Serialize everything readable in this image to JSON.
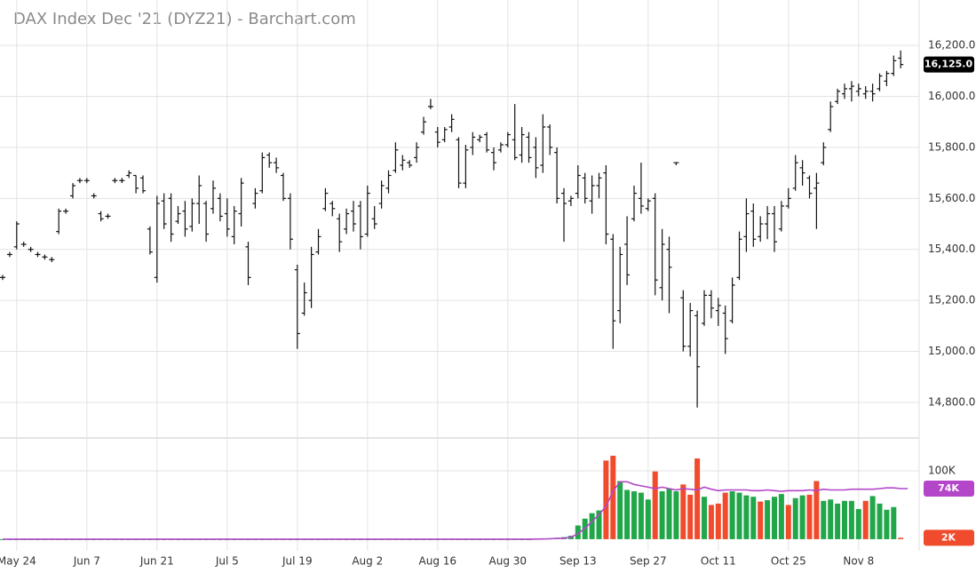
{
  "chart_data": {
    "type": "ohlc",
    "title": "DAX Index Dec '21 (DYZ21) - Barchart.com",
    "color": "#111111",
    "grid": true,
    "categories": [
      null,
      null,
      "May 24",
      null,
      null,
      null,
      null,
      null,
      null,
      null,
      null,
      null,
      "Jun 7",
      null,
      null,
      null,
      null,
      null,
      null,
      null,
      null,
      null,
      "Jun 21",
      null,
      null,
      null,
      null,
      null,
      null,
      null,
      null,
      null,
      "Jul 5",
      null,
      null,
      null,
      null,
      null,
      null,
      null,
      null,
      null,
      "Jul 19",
      null,
      null,
      null,
      null,
      null,
      null,
      null,
      null,
      null,
      "Aug 2",
      null,
      null,
      null,
      null,
      null,
      null,
      null,
      null,
      null,
      "Aug 16",
      null,
      null,
      null,
      null,
      null,
      null,
      null,
      null,
      null,
      "Aug 30",
      null,
      null,
      null,
      null,
      null,
      null,
      null,
      null,
      null,
      "Sep 13",
      null,
      null,
      null,
      null,
      null,
      null,
      null,
      null,
      null,
      "Sep 27",
      null,
      null,
      null,
      null,
      null,
      null,
      null,
      null,
      null,
      "Oct 11",
      null,
      null,
      null,
      null,
      null,
      null,
      null,
      null,
      null,
      "Oct 25",
      null,
      null,
      null,
      null,
      null,
      null,
      null,
      null,
      null,
      "Nov 8",
      null,
      null,
      null,
      null,
      null,
      null
    ],
    "open": [
      15290,
      15380,
      15410,
      15420,
      15400,
      15380,
      15370,
      15360,
      15470,
      15550,
      15610,
      15670,
      15670,
      15610,
      15540,
      15530,
      15670,
      15670,
      15690,
      15690,
      15680,
      15480,
      15290,
      15590,
      15600,
      15510,
      15550,
      15490,
      15580,
      15580,
      15560,
      15600,
      15540,
      15450,
      15540,
      15410,
      15580,
      15630,
      15770,
      15740,
      15690,
      15600,
      15320,
      15150,
      15200,
      15390,
      15560,
      15580,
      15520,
      15480,
      15550,
      15570,
      15460,
      15520,
      15580,
      15640,
      15710,
      15730,
      15740,
      15760,
      15860,
      15960,
      15860,
      15830,
      15880,
      15830,
      15660,
      15800,
      15830,
      15850,
      15780,
      15790,
      15810,
      15830,
      15770,
      15840,
      15800,
      15730,
      15880,
      15780,
      15620,
      15590,
      15620,
      15680,
      15590,
      15650,
      15700,
      15440,
      15160,
      15420,
      15520,
      15600,
      15560,
      15600,
      15250,
      15400,
      15740,
      15210,
      15020,
      15140,
      15110,
      15220,
      15160,
      15150,
      15120,
      15290,
      15450,
      15550,
      15450,
      15500,
      15540,
      15480,
      15570,
      15640,
      15720,
      15680,
      15640,
      15740,
      15870,
      15980,
      16010,
      16030,
      16020,
      16010,
      16020,
      16030,
      16060,
      16090,
      16150
    ],
    "high": [
      15300,
      15390,
      15510,
      15430,
      15410,
      15390,
      15380,
      15370,
      15560,
      15560,
      15660,
      15680,
      15680,
      15620,
      15550,
      15540,
      15680,
      15680,
      15710,
      15690,
      15690,
      15490,
      15610,
      15620,
      15620,
      15570,
      15590,
      15600,
      15690,
      15590,
      15670,
      15620,
      15600,
      15570,
      15680,
      15430,
      15640,
      15780,
      15780,
      15760,
      15700,
      15620,
      15340,
      15270,
      15410,
      15480,
      15640,
      15590,
      15540,
      15560,
      15590,
      15590,
      15650,
      15570,
      15670,
      15710,
      15820,
      15770,
      15750,
      15820,
      15920,
      15990,
      15880,
      15880,
      15930,
      15840,
      15810,
      15860,
      15850,
      15860,
      15800,
      15820,
      15860,
      15970,
      15880,
      15860,
      15840,
      15930,
      15890,
      15800,
      15640,
      15610,
      15730,
      15700,
      15690,
      15700,
      15730,
      15460,
      15410,
      15530,
      15650,
      15740,
      15600,
      15620,
      15480,
      15450,
      15740,
      15240,
      15190,
      15160,
      15240,
      15240,
      15210,
      15180,
      15290,
      15470,
      15600,
      15580,
      15530,
      15570,
      15570,
      15590,
      15640,
      15770,
      15750,
      15690,
      15700,
      15820,
      15980,
      16030,
      16050,
      16060,
      16050,
      16040,
      16050,
      16090,
      16100,
      16160,
      16180
    ],
    "low": [
      15280,
      15370,
      15400,
      15410,
      15390,
      15370,
      15360,
      15350,
      15460,
      15540,
      15600,
      15660,
      15660,
      15600,
      15510,
      15520,
      15660,
      15660,
      15680,
      15620,
      15620,
      15380,
      15270,
      15480,
      15430,
      15500,
      15450,
      15470,
      15500,
      15430,
      15540,
      15510,
      15450,
      15420,
      15490,
      15260,
      15560,
      15620,
      15720,
      15700,
      15590,
      15400,
      15010,
      15140,
      15170,
      15380,
      15550,
      15530,
      15390,
      15460,
      15470,
      15400,
      15450,
      15480,
      15560,
      15620,
      15700,
      15710,
      15720,
      15740,
      15850,
      15950,
      15800,
      15820,
      15860,
      15640,
      15640,
      15770,
      15820,
      15780,
      15710,
      15780,
      15800,
      15750,
      15740,
      15740,
      15680,
      15700,
      15770,
      15580,
      15430,
      15570,
      15600,
      15580,
      15540,
      15600,
      15420,
      15010,
      15110,
      15260,
      15510,
      15540,
      15550,
      15220,
      15200,
      15150,
      15730,
      15000,
      14980,
      14780,
      15100,
      15130,
      15100,
      14990,
      15110,
      15280,
      15390,
      15410,
      15430,
      15440,
      15390,
      15470,
      15560,
      15630,
      15650,
      15600,
      15480,
      15730,
      15860,
      15970,
      15990,
      15980,
      16000,
      15990,
      15980,
      16020,
      16040,
      16080,
      16110
    ],
    "close": [
      15290,
      15380,
      15500,
      15420,
      15400,
      15380,
      15370,
      15360,
      15550,
      15550,
      15650,
      15670,
      15670,
      15610,
      15520,
      15530,
      15670,
      15670,
      15700,
      15640,
      15630,
      15390,
      15580,
      15500,
      15460,
      15540,
      15480,
      15580,
      15650,
      15460,
      15640,
      15530,
      15480,
      15550,
      15660,
      15290,
      15620,
      15760,
      15740,
      15720,
      15600,
      15440,
      15070,
      15230,
      15380,
      15450,
      15620,
      15560,
      15430,
      15540,
      15500,
      15450,
      15620,
      15500,
      15650,
      15690,
      15790,
      15750,
      15730,
      15800,
      15900,
      15960,
      15820,
      15870,
      15910,
      15660,
      15790,
      15840,
      15840,
      15790,
      15740,
      15810,
      15850,
      15760,
      15850,
      15760,
      15720,
      15880,
      15800,
      15600,
      15580,
      15600,
      15690,
      15600,
      15650,
      15680,
      15460,
      15120,
      15380,
      15300,
      15620,
      15570,
      15590,
      15280,
      15420,
      15330,
      15740,
      15020,
      15160,
      14940,
      15220,
      15170,
      15180,
      15050,
      15260,
      15440,
      15540,
      15440,
      15500,
      15540,
      15430,
      15570,
      15600,
      15740,
      15700,
      15620,
      15660,
      15800,
      15960,
      16020,
      16030,
      16040,
      16030,
      16020,
      16010,
      16080,
      16090,
      16140,
      16125
    ],
    "last_close_label": "16,125.0",
    "ylim": [
      14664,
      16378
    ],
    "yticks": [
      {
        "value": 14800,
        "label": "14,800.0"
      },
      {
        "value": 15000,
        "label": "15,000.0"
      },
      {
        "value": 15200,
        "label": "15,200.0"
      },
      {
        "value": 15400,
        "label": "15,400.0"
      },
      {
        "value": 15600,
        "label": "15,600.0"
      },
      {
        "value": 15800,
        "label": "15,800.0"
      },
      {
        "value": 16000,
        "label": "16,000.0"
      },
      {
        "value": 16200,
        "label": "16,200.0"
      }
    ],
    "volume": {
      "values": [
        0,
        0,
        0,
        0,
        0,
        0,
        0,
        0,
        0,
        0,
        0,
        0,
        0,
        0,
        0,
        0,
        0,
        0,
        0,
        0,
        0,
        0,
        0,
        0,
        0,
        0,
        0,
        0,
        0,
        0,
        0,
        0,
        0,
        0,
        0,
        0,
        0,
        0,
        0,
        0,
        0,
        0,
        0,
        0,
        0,
        0,
        0,
        0,
        0,
        0,
        0,
        0,
        0,
        0,
        0,
        0,
        0,
        0,
        0,
        0,
        0,
        0,
        0,
        0,
        0,
        0,
        0,
        0,
        0,
        0,
        0,
        0,
        0,
        0,
        0,
        0,
        500,
        1000,
        1500,
        2000,
        3000,
        5000,
        20000,
        30000,
        38000,
        42000,
        115000,
        122000,
        85000,
        72000,
        70000,
        68000,
        58000,
        99000,
        70000,
        74000,
        70000,
        80000,
        65000,
        118000,
        62000,
        50000,
        52000,
        68000,
        70000,
        68000,
        64000,
        62000,
        55000,
        57000,
        62000,
        66000,
        50000,
        60000,
        64000,
        65000,
        85000,
        56000,
        58000,
        52000,
        56000,
        56000,
        44000,
        56000,
        63000,
        52000,
        43000,
        47000,
        2000
      ],
      "colors": [
        "#21a649",
        "#21a649",
        "#21a649",
        "#21a649",
        "#21a649",
        "#21a649",
        "#21a649",
        "#21a649",
        "#21a649",
        "#21a649",
        "#21a649",
        "#21a649",
        "#21a649",
        "#21a649",
        "#21a649",
        "#21a649",
        "#21a649",
        "#21a649",
        "#21a649",
        "#21a649",
        "#21a649",
        "#21a649",
        "#21a649",
        "#21a649",
        "#21a649",
        "#21a649",
        "#21a649",
        "#21a649",
        "#21a649",
        "#21a649",
        "#21a649",
        "#21a649",
        "#21a649",
        "#21a649",
        "#21a649",
        "#21a649",
        "#21a649",
        "#21a649",
        "#21a649",
        "#21a649",
        "#21a649",
        "#21a649",
        "#21a649",
        "#21a649",
        "#21a649",
        "#21a649",
        "#21a649",
        "#21a649",
        "#21a649",
        "#21a649",
        "#21a649",
        "#21a649",
        "#21a649",
        "#21a649",
        "#21a649",
        "#21a649",
        "#21a649",
        "#21a649",
        "#21a649",
        "#21a649",
        "#21a649",
        "#21a649",
        "#21a649",
        "#21a649",
        "#21a649",
        "#21a649",
        "#21a649",
        "#21a649",
        "#21a649",
        "#21a649",
        "#21a649",
        "#21a649",
        "#21a649",
        "#21a649",
        "#21a649",
        "#21a649",
        "#21a649",
        "#21a649",
        "#21a649",
        "#21a649",
        "#21a649",
        "#21a649",
        "#21a649",
        "#21a649",
        "#21a649",
        "#21a649",
        "#ef4b2c",
        "#ef4b2c",
        "#21a649",
        "#21a649",
        "#21a649",
        "#21a649",
        "#21a649",
        "#ef4b2c",
        "#21a649",
        "#21a649",
        "#21a649",
        "#ef4b2c",
        "#ef4b2c",
        "#ef4b2c",
        "#21a649",
        "#ef4b2c",
        "#ef4b2c",
        "#ef4b2c",
        "#21a649",
        "#21a649",
        "#21a649",
        "#21a649",
        "#ef4b2c",
        "#21a649",
        "#21a649",
        "#21a649",
        "#ef4b2c",
        "#21a649",
        "#21a649",
        "#ef4b2c",
        "#ef4b2c",
        "#21a649",
        "#21a649",
        "#21a649",
        "#21a649",
        "#21a649",
        "#21a649",
        "#ef4b2c",
        "#21a649",
        "#21a649",
        "#21a649",
        "#21a649",
        "#ef4b2c"
      ],
      "last_label": "2K",
      "last_label_color": "#ef4b2c",
      "ylim": [
        -17000,
        148000
      ],
      "yticks": [
        {
          "value": 100000,
          "label": "100K"
        }
      ],
      "ma": {
        "color": "#b447c9",
        "values": [
          0,
          0,
          0,
          0,
          0,
          0,
          0,
          0,
          0,
          0,
          0,
          0,
          0,
          0,
          0,
          0,
          0,
          0,
          0,
          0,
          0,
          0,
          0,
          0,
          0,
          0,
          0,
          0,
          0,
          0,
          0,
          0,
          0,
          0,
          0,
          0,
          0,
          0,
          0,
          0,
          0,
          0,
          0,
          0,
          0,
          0,
          0,
          0,
          0,
          0,
          0,
          0,
          0,
          0,
          0,
          0,
          0,
          0,
          0,
          0,
          0,
          0,
          0,
          0,
          0,
          0,
          0,
          0,
          0,
          0,
          0,
          0,
          0,
          0,
          0,
          0,
          100,
          300,
          600,
          1000,
          1500,
          3000,
          8000,
          16000,
          26000,
          36000,
          48000,
          70000,
          84000,
          84000,
          80000,
          78000,
          76000,
          74000,
          76000,
          74000,
          72000,
          74000,
          73000,
          72000,
          76000,
          73000,
          71000,
          72000,
          72000,
          72000,
          72000,
          71000,
          71000,
          72000,
          71000,
          70000,
          71000,
          71000,
          71000,
          72000,
          71000,
          73000,
          72000,
          72000,
          72000,
          73000,
          73000,
          73000,
          73000,
          74000,
          75000,
          75000,
          74000,
          74000
        ],
        "last_label": "74K"
      }
    }
  }
}
